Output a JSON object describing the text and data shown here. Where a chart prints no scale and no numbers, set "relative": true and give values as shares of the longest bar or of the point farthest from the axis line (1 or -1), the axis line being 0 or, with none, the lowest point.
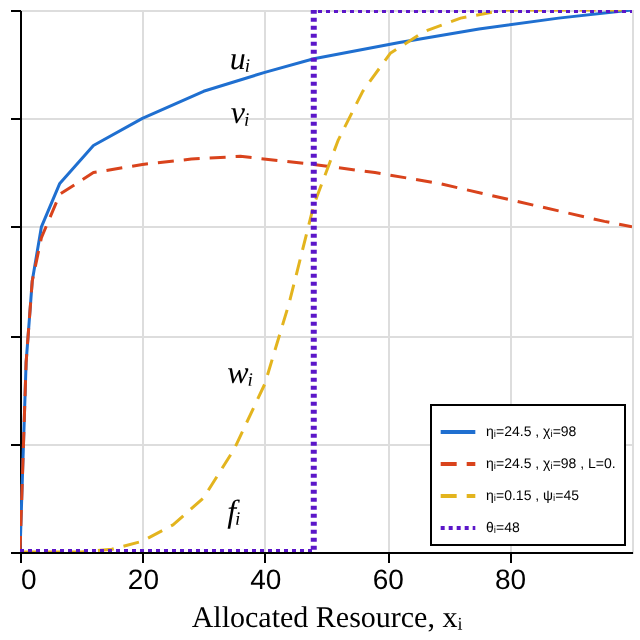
{
  "chart_data": {
    "type": "line",
    "xlabel": "Allocated Resource, xᵢ",
    "relative": true,
    "xlim": [
      0,
      100
    ],
    "xticks": [
      0,
      20,
      40,
      60,
      80
    ],
    "grid": true,
    "legend": "bottom right",
    "series": [
      {
        "name": "ηᵢ=24.5 , χᵢ=98",
        "color": "#1f6fd0",
        "line_style": "solid",
        "x": [
          0,
          1,
          2,
          3.5,
          6.5,
          12,
          20,
          30,
          40,
          48,
          62,
          75,
          88,
          100
        ],
        "values": [
          0,
          0.35,
          0.5,
          0.6,
          0.68,
          0.75,
          0.8,
          0.85,
          0.885,
          0.91,
          0.94,
          0.965,
          0.985,
          1
        ]
      },
      {
        "name": "ηᵢ=24.5 , χᵢ=98 , L=0.",
        "color": "#d9431c",
        "line_style": "dashed",
        "x": [
          0,
          1,
          2,
          3.5,
          6.5,
          12,
          20,
          28,
          36,
          48,
          58,
          68.5,
          80,
          95.5,
          100
        ],
        "values": [
          0,
          0.35,
          0.5,
          0.58,
          0.66,
          0.7,
          0.715,
          0.725,
          0.73,
          0.715,
          0.7,
          0.68,
          0.65,
          0.61,
          0.6
        ]
      },
      {
        "name": "ηᵢ=0.15 , ψᵢ=45",
        "color": "#e3b41e",
        "line_style": "dashed",
        "x": [
          0,
          10,
          15,
          20,
          25,
          30,
          35,
          40,
          44,
          48,
          52,
          56,
          60.5,
          66,
          72,
          79,
          100
        ],
        "values": [
          0,
          0,
          0.005,
          0.02,
          0.05,
          0.1,
          0.19,
          0.31,
          0.46,
          0.64,
          0.76,
          0.85,
          0.92,
          0.96,
          0.985,
          1,
          1
        ]
      },
      {
        "name": "θᵢ=48",
        "color": "#5b16c9",
        "type": "step",
        "line_style": "dotted",
        "x": [
          0,
          48,
          100
        ],
        "values": [
          0,
          1,
          1
        ]
      }
    ],
    "annotations": [
      "uᵢ",
      "vᵢ",
      "wᵢ",
      "fᵢ"
    ]
  }
}
